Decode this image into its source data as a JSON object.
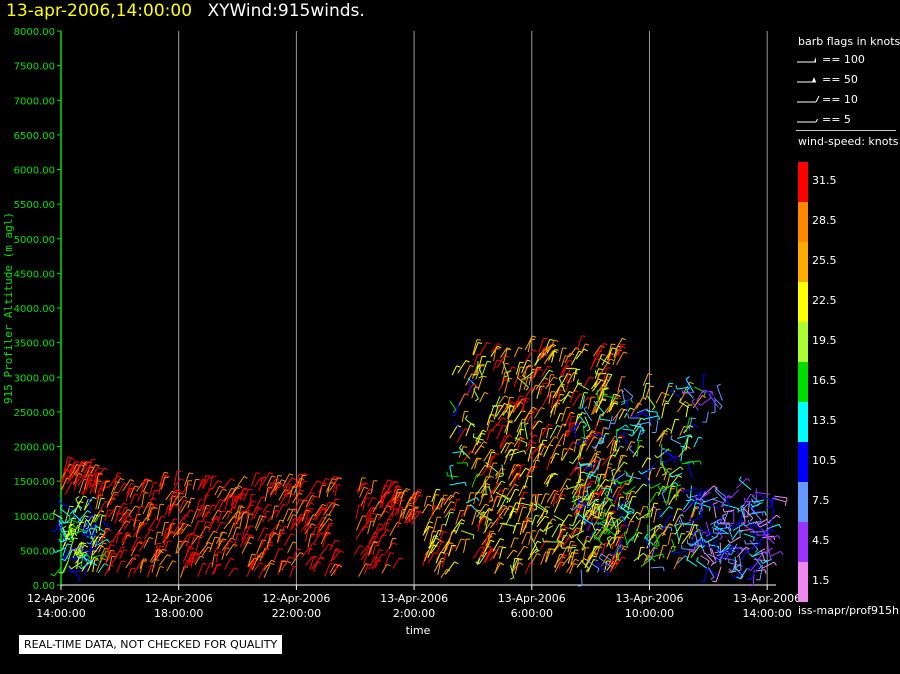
{
  "header": {
    "timestamp": "13-apr-2006,14:00:00",
    "name": "XYWind:915winds."
  },
  "chart_data": {
    "type": "scatter",
    "subtype": "wind-barbs",
    "title": "",
    "xlabel": "time",
    "ylabel": "915 Profiler Altitude (m agl)",
    "ylim": [
      0,
      8000
    ],
    "yticks": [
      "0.00",
      "500.00",
      "1000.00",
      "1500.00",
      "2000.00",
      "2500.00",
      "3000.00",
      "3500.00",
      "4000.00",
      "4500.00",
      "5000.00",
      "5500.00",
      "6000.00",
      "6500.00",
      "7000.00",
      "7500.00",
      "8000.00"
    ],
    "xrange_hours": [
      0,
      24.3
    ],
    "xticks": [
      {
        "hour": 0,
        "date": "12-Apr-2006",
        "time": "14:00:00"
      },
      {
        "hour": 4,
        "date": "12-Apr-2006",
        "time": "18:00:00"
      },
      {
        "hour": 8,
        "date": "12-Apr-2006",
        "time": "22:00:00"
      },
      {
        "hour": 12,
        "date": "13-Apr-2006",
        "time": "2:00:00"
      },
      {
        "hour": 16,
        "date": "13-Apr-2006",
        "time": "6:00:00"
      },
      {
        "hour": 20,
        "date": "13-Apr-2006",
        "time": "10:00:00"
      },
      {
        "hour": 24,
        "date": "13-Apr-2006",
        "time": "14:00:00"
      }
    ],
    "grid": "vertical-at-ticks",
    "data_regions": [
      {
        "t0": 0.0,
        "t1": 1.3,
        "zmin": 150,
        "zmax": 1100,
        "speed": [
          8,
          24
        ],
        "density": 7
      },
      {
        "t0": 0.0,
        "t1": 1.2,
        "zmin": 1300,
        "zmax": 1650,
        "speed": [
          28,
          34
        ],
        "density": 3
      },
      {
        "t0": 1.2,
        "t1": 9.3,
        "zmin": 100,
        "zmax": 1450,
        "speed": [
          28,
          34
        ],
        "density": 4
      },
      {
        "t0": 10.0,
        "t1": 11.3,
        "zmin": 100,
        "zmax": 1400,
        "speed": [
          28,
          34
        ],
        "density": 4
      },
      {
        "t0": 11.3,
        "t1": 12.0,
        "zmin": 800,
        "zmax": 1250,
        "speed": [
          28,
          34
        ],
        "density": 3
      },
      {
        "t0": 12.3,
        "t1": 13.2,
        "zmin": 100,
        "zmax": 1200,
        "speed": [
          20,
          34
        ],
        "density": 4
      },
      {
        "t0": 13.2,
        "t1": 14.0,
        "zmin": 300,
        "zmax": 3100,
        "speed": [
          10,
          34
        ],
        "density": 4
      },
      {
        "t0": 14.0,
        "t1": 19.0,
        "zmin": 150,
        "zmax": 3400,
        "speed": [
          18,
          34
        ],
        "density": 9
      },
      {
        "t0": 17.5,
        "t1": 21.5,
        "zmin": 200,
        "zmax": 2900,
        "speed": [
          6,
          30
        ],
        "density": 6
      },
      {
        "t0": 21.5,
        "t1": 24.3,
        "zmin": 200,
        "zmax": 1400,
        "speed": [
          1,
          14
        ],
        "density": 5
      },
      {
        "t0": 21.5,
        "t1": 22.5,
        "zmin": 2500,
        "zmax": 2850,
        "speed": [
          5,
          12
        ],
        "density": 1
      }
    ]
  },
  "legend": {
    "flags_title": "barb flags in knots",
    "flags": [
      "== 100",
      "== 50",
      "== 10",
      "== 5"
    ],
    "speed_title": "wind-speed: knots",
    "speed_labels": [
      "31.5",
      "28.5",
      "25.5",
      "22.5",
      "19.5",
      "16.5",
      "13.5",
      "10.5",
      "7.5",
      "4.5",
      "1.5"
    ],
    "speed_colors": [
      "#ff0000",
      "#ff8800",
      "#ffaa00",
      "#ffff00",
      "#aaff33",
      "#00dd00",
      "#00ffff",
      "#0000ff",
      "#6699ff",
      "#9933ff",
      "#ee88ee"
    ],
    "footer": "iss-mapr/prof915h"
  },
  "notice": "REAL-TIME DATA, NOT CHECKED FOR QUALITY"
}
